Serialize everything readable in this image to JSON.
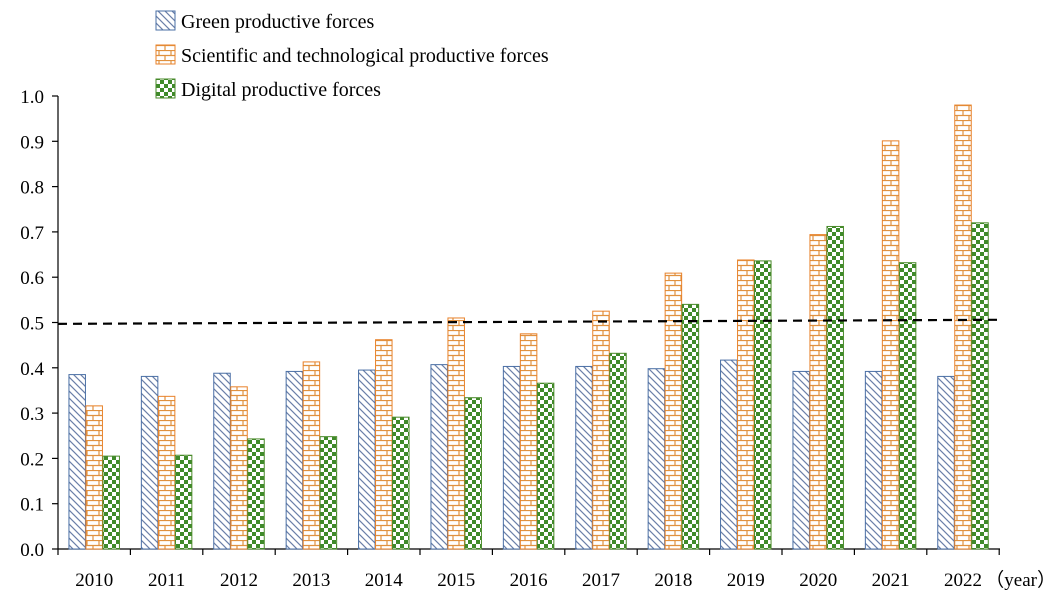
{
  "chart_data": {
    "type": "bar",
    "title": "",
    "xlabel": "（year）",
    "ylabel": "",
    "ylim": [
      0,
      1.0
    ],
    "yticks": [
      "0.0",
      "0.1",
      "0.2",
      "0.3",
      "0.4",
      "0.5",
      "0.6",
      "0.7",
      "0.8",
      "0.9",
      "1.0"
    ],
    "grid": false,
    "legend_position": "top-left",
    "categories": [
      "2010",
      "2011",
      "2012",
      "2013",
      "2014",
      "2015",
      "2016",
      "2017",
      "2018",
      "2019",
      "2020",
      "2021",
      "2022"
    ],
    "series": [
      {
        "name": "Green productive forces",
        "pattern": "diagonal-hatch",
        "color": "#4a6fa5",
        "values": [
          0.385,
          0.381,
          0.388,
          0.392,
          0.395,
          0.407,
          0.403,
          0.403,
          0.398,
          0.417,
          0.392,
          0.392,
          0.381
        ]
      },
      {
        "name": "Scientific and technological productive forces",
        "pattern": "brick",
        "color": "#e8822a",
        "values": [
          0.316,
          0.337,
          0.358,
          0.413,
          0.462,
          0.51,
          0.475,
          0.525,
          0.609,
          0.638,
          0.694,
          0.901,
          0.98
        ]
      },
      {
        "name": "Digital productive forces",
        "pattern": "checker",
        "color": "#4a8a2a",
        "values": [
          0.205,
          0.207,
          0.243,
          0.248,
          0.291,
          0.334,
          0.366,
          0.432,
          0.54,
          0.636,
          0.712,
          0.632,
          0.72
        ]
      }
    ],
    "reference_line": {
      "y_start": 0.497,
      "y_end": 0.506,
      "style": "dashed"
    }
  }
}
